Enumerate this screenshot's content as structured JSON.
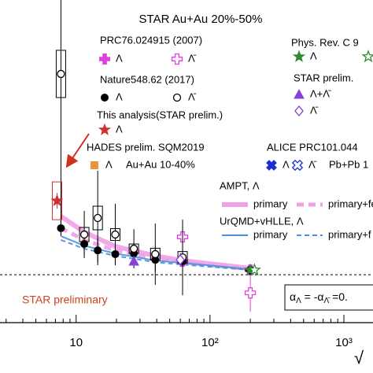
{
  "chart_data": {
    "type": "scatter",
    "title": "STAR Au+Au 20%-50%",
    "xlabel": "√",
    "xlog": true,
    "xlim": [
      2.7,
      1650
    ],
    "ylim": [
      -2.03,
      11.63
    ],
    "xticks": [
      10,
      {
        "value": 100,
        "label": "10²"
      },
      {
        "value": 1000,
        "label": "10³"
      }
    ],
    "xminorticks": [
      3,
      4,
      5,
      6,
      7,
      8,
      9,
      20,
      30,
      40,
      50,
      60,
      70,
      80,
      90,
      200,
      300,
      400,
      500,
      600,
      700,
      800,
      900
    ],
    "refline": 0,
    "annotation": "STAR preliminary",
    "formula": [
      "α",
      "Λ",
      " = -α",
      "Λ̄",
      " =0."
    ],
    "groups": [
      {
        "title": "PRC76.024915 (2007)",
        "series": [
          {
            "name": "Λ",
            "marker": "filled-plus",
            "color": "#e040e0",
            "x": [
              62.4,
              200
            ],
            "values": [
              0.57,
              0.2
            ],
            "errors": [
              0.3,
              0.1
            ]
          },
          {
            "name": "Λ̄",
            "marker": "open-plus",
            "color": "#e040e0",
            "x": [
              62.4,
              200
            ],
            "values": [
              1.6,
              -0.77
            ],
            "errors": [
              0.5,
              0.8
            ]
          }
        ]
      },
      {
        "title": "Nature548.62 (2017)",
        "series": [
          {
            "name": "Λ",
            "marker": "filled-circle",
            "color": "#000000",
            "x": [
              7.7,
              11.5,
              14.5,
              19.6,
              27,
              39,
              62.4,
              200
            ],
            "values": [
              1.97,
              1.3,
              1.03,
              0.87,
              0.9,
              0.63,
              0.57,
              0.17
            ],
            "errors": [
              0.33,
              0.5,
              0.5,
              0.4,
              0.27,
              0.5,
              0.67,
              0.05
            ]
          },
          {
            "name": "Λ̄",
            "marker": "open-circle",
            "color": "#000000",
            "x": [
              7.7,
              11.5,
              14.5,
              19.6,
              27,
              39,
              62.4,
              200
            ],
            "values": [
              8.5,
              1.7,
              2.4,
              1.7,
              1.1,
              0.87,
              0.73,
              0.2
            ],
            "errors": [
              6.8,
              1.0,
              2.0,
              1.3,
              0.83,
              1.3,
              1.6,
              0.1
            ],
            "sys": [
              1.0,
              0.3,
              0.5,
              0.25,
              0.2,
              0.25,
              0.25,
              0.05
            ]
          }
        ]
      },
      {
        "title": "This analysis(STAR prelim.)",
        "series": [
          {
            "name": "Λ",
            "marker": "filled-star",
            "color": "#d03030",
            "x": [
              7.2
            ],
            "values": [
              3.13
            ],
            "errors": [
              0.33
            ],
            "sys": [
              0.8
            ]
          }
        ]
      },
      {
        "title": "HADES prelim. SQM2019",
        "note": "Au+Au 10-40%",
        "series": [
          {
            "name": "Λ",
            "marker": "filled-square",
            "color": "#e8963a"
          }
        ]
      },
      {
        "title": "Phys. Rev. C 9",
        "series": [
          {
            "name": "Λ",
            "marker": "filled-star",
            "color": "#2e8b2e",
            "x": [
              200
            ],
            "values": [
              0.2
            ],
            "errors": [
              0.05
            ]
          },
          {
            "name": "Λ̄",
            "marker": "open-star",
            "color": "#2e8b2e",
            "x": [
              215
            ],
            "values": [
              0.2
            ],
            "errors": [
              0.05
            ]
          }
        ]
      },
      {
        "title": "STAR prelim.",
        "series": [
          {
            "name": "Λ+Λ̄",
            "marker": "filled-triangle",
            "color": "#8a3fd8",
            "x": [
              27
            ],
            "values": [
              0.57
            ],
            "errors": [
              0.1
            ]
          },
          {
            "name": "Λ̄",
            "marker": "open-diamond",
            "color": "#8a3fd8",
            "x": [
              60
            ],
            "values": [
              0.63
            ],
            "errors": [
              0.3
            ]
          }
        ]
      },
      {
        "title": "ALICE PRC101.044",
        "note": "Pb+Pb 1",
        "series": [
          {
            "name": "Λ",
            "marker": "filled-cross",
            "color": "#1a2fd0"
          },
          {
            "name": "Λ̄",
            "marker": "open-cross",
            "color": "#1a2fd0"
          }
        ]
      },
      {
        "title": "AMPT, Λ",
        "series": [
          {
            "name": "primary",
            "line": "solid",
            "width": 6,
            "color": "#f0a0e8",
            "x": [
              7.7,
              11.5,
              19.6,
              39,
              62.4,
              200
            ],
            "values": [
              2.47,
              1.8,
              1.2,
              0.8,
              0.6,
              0.27
            ]
          },
          {
            "name": "primary+fe",
            "line": "dashed",
            "width": 5,
            "color": "#f0a0e8",
            "x": [
              7.7,
              11.5,
              19.6,
              39,
              62.4,
              200
            ],
            "values": [
              1.97,
              1.47,
              1.03,
              0.7,
              0.53,
              0.23
            ]
          }
        ]
      },
      {
        "title": "UrQMD+vHLLE, Λ",
        "series": [
          {
            "name": "primary",
            "line": "solid",
            "width": 2,
            "color": "#4a90d9",
            "x": [
              7.7,
              11.5,
              19.6,
              39,
              62.4,
              200
            ],
            "values": [
              1.63,
              1.23,
              0.9,
              0.6,
              0.5,
              0.23
            ]
          },
          {
            "name": "primary+f",
            "line": "dashed",
            "width": 2,
            "color": "#4a90d9",
            "x": [
              7.7,
              11.5,
              19.6,
              39,
              62.4,
              200
            ],
            "values": [
              1.47,
              1.1,
              0.8,
              0.53,
              0.43,
              0.2
            ]
          }
        ]
      }
    ]
  }
}
